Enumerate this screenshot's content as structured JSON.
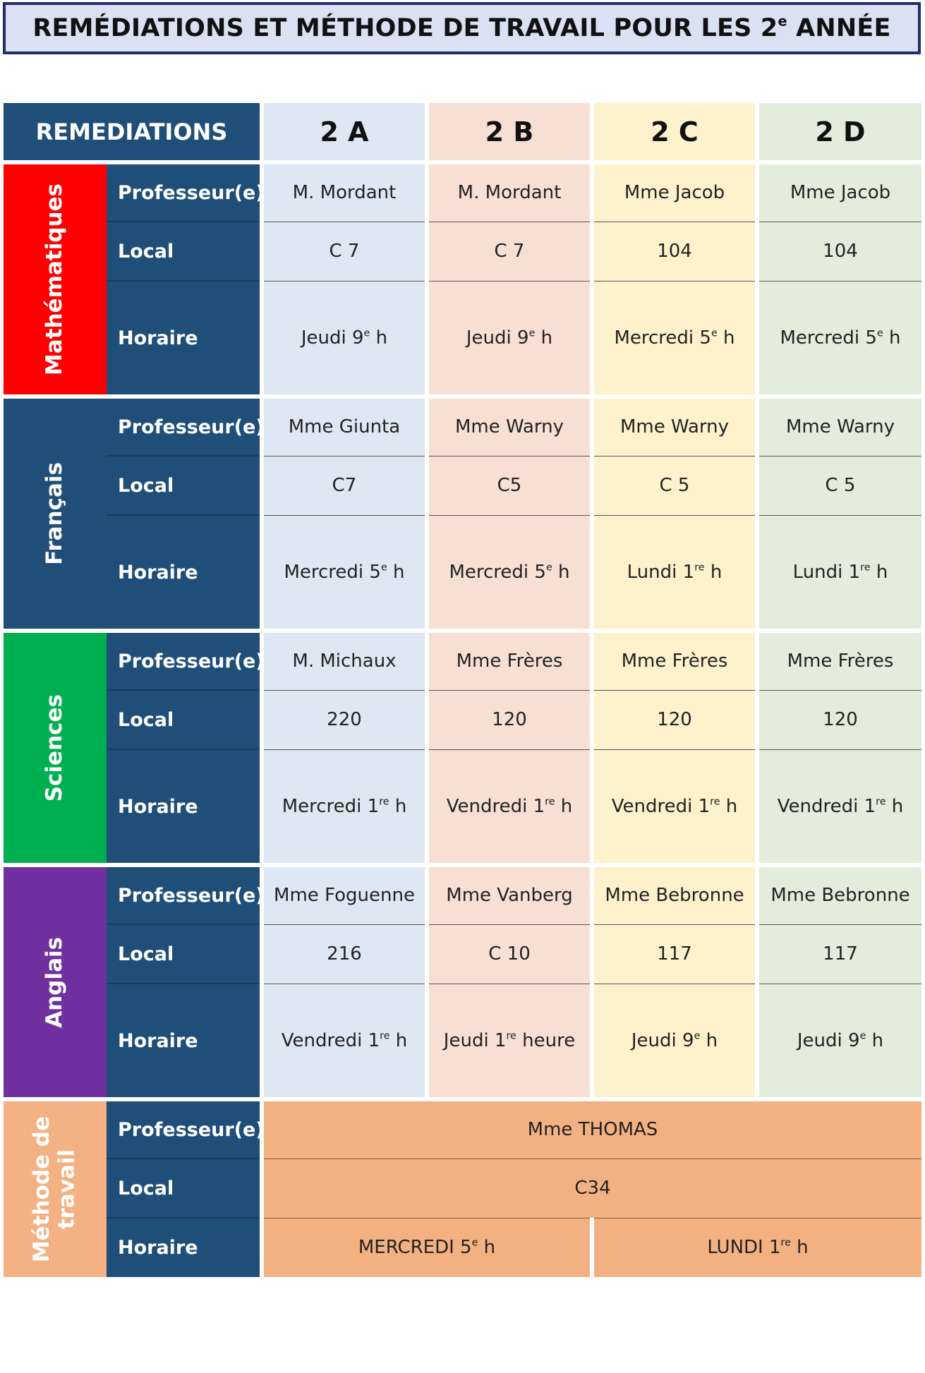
{
  "title": {
    "text": "REMÉDIATIONS ET MÉTHODE DE TRAVAIL POUR LES 2",
    "sup": "e",
    "tail": " ANNÉE"
  },
  "header": {
    "corner": "REMEDIATIONS",
    "columns": [
      "2 A",
      "2 B",
      "2 C",
      "2 D"
    ]
  },
  "row_labels": {
    "prof": "Professeur(e)",
    "local": "Local",
    "horaire": "Horaire"
  },
  "colors": {
    "header_blue": "#1f4e79",
    "math": "#ff0000",
    "francais": "#1f4e79",
    "sciences": "#00b050",
    "anglais": "#7030a0",
    "methode": "#f4b183"
  },
  "subjects": [
    {
      "name": "Mathématiques",
      "prof": [
        "M. Mordant",
        "M. Mordant",
        "Mme Jacob",
        "Mme Jacob"
      ],
      "local": [
        "C 7",
        "C 7",
        "104",
        "104"
      ],
      "horaire": [
        {
          "a": "Jeudi 9",
          "s": "e",
          "b": " h"
        },
        {
          "a": "Jeudi 9",
          "s": "e",
          "b": " h"
        },
        {
          "a": "Mercredi 5",
          "s": "e",
          "b": " h"
        },
        {
          "a": "Mercredi 5",
          "s": "e",
          "b": " h"
        }
      ]
    },
    {
      "name": "Français",
      "prof": [
        "Mme Giunta",
        "Mme Warny",
        "Mme Warny",
        "Mme Warny"
      ],
      "local": [
        "C7",
        "C5",
        "C 5",
        "C 5"
      ],
      "horaire": [
        {
          "a": "Mercredi 5",
          "s": "e",
          "b": " h"
        },
        {
          "a": "Mercredi 5",
          "s": "e",
          "b": " h"
        },
        {
          "a": "Lundi 1",
          "s": "re",
          "b": " h"
        },
        {
          "a": "Lundi 1",
          "s": "re",
          "b": " h"
        }
      ]
    },
    {
      "name": "Sciences",
      "prof": [
        "M. Michaux",
        "Mme Frères",
        "Mme Frères",
        "Mme Frères"
      ],
      "local": [
        "220",
        "120",
        "120",
        "120"
      ],
      "horaire": [
        {
          "a": "Mercredi 1",
          "s": "re",
          "b": " h"
        },
        {
          "a": "Vendredi 1",
          "s": "re",
          "b": " h"
        },
        {
          "a": "Vendredi 1",
          "s": "re",
          "b": " h"
        },
        {
          "a": "Vendredi 1",
          "s": "re",
          "b": " h"
        }
      ]
    },
    {
      "name": "Anglais",
      "prof": [
        "Mme Foguenne",
        "Mme Vanberg",
        "Mme Bebronne",
        "Mme Bebronne"
      ],
      "local": [
        "216",
        "C 10",
        "117",
        "117"
      ],
      "horaire": [
        {
          "a": "Vendredi 1",
          "s": "re",
          "b": " h"
        },
        {
          "a": "Jeudi 1",
          "s": "re",
          "b": " heure"
        },
        {
          "a": "Jeudi 9",
          "s": "e",
          "b": " h"
        },
        {
          "a": "Jeudi 9",
          "s": "e",
          "b": " h"
        }
      ]
    }
  ],
  "methode": {
    "name_line1": "Méthode de",
    "name_line2": "travail",
    "prof": "Mme THOMAS",
    "local": "C34",
    "horaire_left": {
      "a": "MERCREDI 5",
      "s": "e",
      "b": " h"
    },
    "horaire_right": {
      "a": "LUNDI 1",
      "s": "re",
      "b": " h"
    }
  }
}
